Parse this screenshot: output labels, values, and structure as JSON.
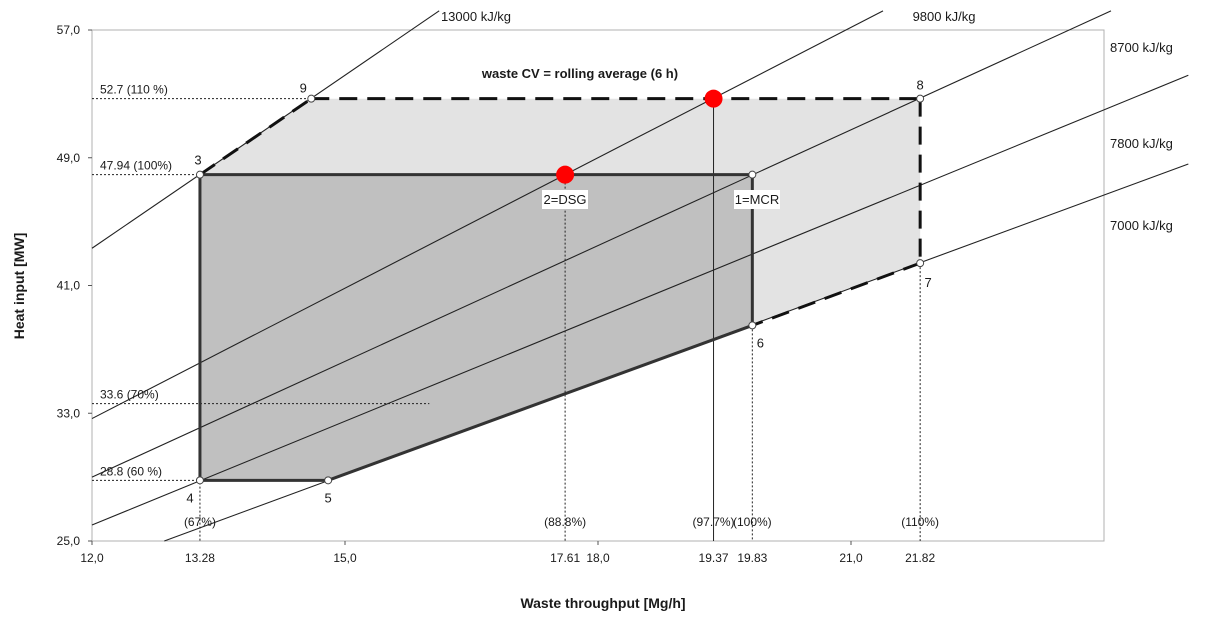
{
  "chart_data": {
    "type": "line",
    "title": "waste CV = rolling average (6 h)",
    "xlabel": "Waste throughput [Mg/h]",
    "ylabel": "Heat input [MW]",
    "xlim": [
      12.0,
      24.0
    ],
    "ylim": [
      25.0,
      57.0
    ],
    "x_ticks": [
      "12,0",
      "15,0",
      "18,0",
      "21,0"
    ],
    "x_tick_values": [
      12.0,
      15.0,
      18.0,
      21.0
    ],
    "y_ticks": [
      "25,0",
      "33,0",
      "41,0",
      "49,0",
      "57,0"
    ],
    "y_tick_values": [
      25.0,
      33.0,
      41.0,
      49.0,
      57.0
    ],
    "x_extra_labels": [
      {
        "x": 13.28,
        "label": "13.28"
      },
      {
        "x": 17.61,
        "label": "17.61"
      },
      {
        "x": 19.37,
        "label": "19.37"
      },
      {
        "x": 19.83,
        "label": "19.83"
      },
      {
        "x": 21.82,
        "label": "21.82"
      }
    ],
    "load_percent_labels": [
      {
        "x": 13.28,
        "label": "(67%)"
      },
      {
        "x": 17.61,
        "label": "(88.8%)"
      },
      {
        "x": 19.37,
        "label": "(97.7%)"
      },
      {
        "x": 19.83,
        "label": "(100%)"
      },
      {
        "x": 21.82,
        "label": "(110%)"
      }
    ],
    "heat_input_labels": [
      {
        "y": 52.7,
        "label": "52.7 (110 %)"
      },
      {
        "y": 47.94,
        "label": "47.94 (100%)"
      },
      {
        "y": 33.6,
        "label": "33.6 (70%)"
      },
      {
        "y": 28.8,
        "label": "28.8 (60 %)"
      }
    ],
    "calorific_value_lines": [
      {
        "label": "13000 kJ/kg",
        "cv": 13000
      },
      {
        "label": "9800 kJ/kg",
        "cv": 9800
      },
      {
        "label": "8700 kJ/kg",
        "cv": 8700
      },
      {
        "label": "7800 kJ/kg",
        "cv": 7800
      },
      {
        "label": "7000 kJ/kg",
        "cv": 7000
      }
    ],
    "points": [
      {
        "id": "1",
        "label": "1=MCR",
        "x": 19.37,
        "y": 52.7,
        "highlight": true
      },
      {
        "id": "2",
        "label": "2=DSG",
        "x": 17.61,
        "y": 47.94,
        "highlight": true
      },
      {
        "id": "3",
        "label": "3",
        "x": 13.28,
        "y": 47.94
      },
      {
        "id": "4",
        "label": "4",
        "x": 13.28,
        "y": 28.8
      },
      {
        "id": "5",
        "label": "5",
        "x": 14.8,
        "y": 28.8
      },
      {
        "id": "6",
        "label": "6",
        "x": 19.83,
        "y": 38.5
      },
      {
        "id": "7",
        "label": "7",
        "x": 21.82,
        "y": 42.4
      },
      {
        "id": "8",
        "label": "8",
        "x": 21.82,
        "y": 52.7
      },
      {
        "id": "9",
        "label": "9",
        "x": 14.6,
        "y": 52.7
      },
      {
        "id": "c",
        "label": "",
        "x": 19.83,
        "y": 47.94
      }
    ],
    "regions": [
      {
        "name": "design",
        "vertices": [
          "3",
          "c",
          "6",
          "5",
          "4"
        ],
        "color": "#c0c0c0"
      },
      {
        "name": "overload",
        "vertices": [
          "9",
          "8",
          "7",
          "6",
          "c",
          "3"
        ],
        "color": "#e3e3e3"
      }
    ],
    "highlight_color": "#ff0000"
  }
}
